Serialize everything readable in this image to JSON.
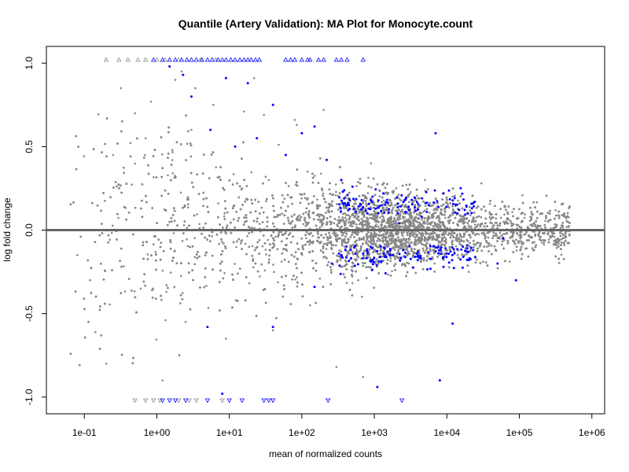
{
  "chart_data": {
    "type": "scatter",
    "title": "Quantile (Artery Validation): MA Plot for Monocyte.count",
    "xlabel": "mean of normalized counts",
    "ylabel": "log fold change",
    "x_scale": "log10",
    "xlim": [
      0.03,
      1500000
    ],
    "ylim": [
      -1.1,
      1.1
    ],
    "x_ticks": [
      {
        "value": 0.1,
        "label": "1e-01"
      },
      {
        "value": 1,
        "label": "1e+00"
      },
      {
        "value": 10,
        "label": "1e+01"
      },
      {
        "value": 100,
        "label": "1e+02"
      },
      {
        "value": 1000,
        "label": "1e+03"
      },
      {
        "value": 10000,
        "label": "1e+04"
      },
      {
        "value": 100000,
        "label": "1e+05"
      },
      {
        "value": 1000000,
        "label": "1e+06"
      }
    ],
    "y_ticks": [
      {
        "value": -1.0,
        "label": "-1.0"
      },
      {
        "value": -0.5,
        "label": "-0.5"
      },
      {
        "value": 0.0,
        "label": "0.0"
      },
      {
        "value": 0.5,
        "label": "0.5"
      },
      {
        "value": 1.0,
        "label": "1.0"
      }
    ],
    "reference_line": {
      "y": 0,
      "color": "#666666"
    },
    "grid": false,
    "colors": {
      "not_significant": "#888888",
      "significant": "#0000ff"
    },
    "series": [
      {
        "points": [
          [
            0.32,
            0.85
          ],
          [
            0.5,
            0.7
          ],
          [
            1.8,
            0.9
          ],
          [
            2.2,
            0.95
          ],
          [
            3.4,
            0.85
          ],
          [
            6.0,
            0.75
          ],
          [
            16,
            0.71
          ],
          [
            22,
            0.91
          ],
          [
            30,
            0.69
          ],
          [
            80,
            0.66
          ],
          [
            85,
            0.63
          ],
          [
            200,
            0.72
          ],
          [
            0.25,
            0.45
          ],
          [
            0.7,
            0.55
          ],
          [
            3.0,
            0.6
          ],
          [
            15,
            0.25
          ],
          [
            35,
            0.3
          ],
          [
            120,
            0.35
          ],
          [
            400,
            0.2
          ],
          [
            900,
            0.4
          ],
          [
            2000,
            0.25
          ],
          [
            5000,
            0.3
          ],
          [
            12000,
            0.2
          ],
          [
            30000,
            0.28
          ],
          [
            250000,
            0.05
          ],
          [
            0.08,
            -0.15
          ],
          [
            0.12,
            -0.3
          ],
          [
            0.6,
            -0.35
          ],
          [
            2.5,
            -0.55
          ],
          [
            9,
            -0.65
          ],
          [
            40,
            -0.6
          ],
          [
            130,
            -0.45
          ],
          [
            600,
            -0.3
          ],
          [
            3000,
            -0.2
          ],
          [
            20000,
            -0.25
          ],
          [
            160000,
            -0.12
          ],
          [
            0.2,
            -0.8
          ],
          [
            1.2,
            -0.9
          ],
          [
            300,
            -0.82
          ],
          [
            700,
            -0.88
          ]
        ],
        "values_note": ""
      },
      {
        "points": [
          [
            1.5,
            0.98
          ],
          [
            2.3,
            0.93
          ],
          [
            3.0,
            0.8
          ],
          [
            5.5,
            0.6
          ],
          [
            9,
            0.91
          ],
          [
            12,
            0.5
          ],
          [
            18,
            0.88
          ],
          [
            24,
            0.55
          ],
          [
            40,
            0.75
          ],
          [
            60,
            0.45
          ],
          [
            100,
            0.58
          ],
          [
            150,
            0.62
          ],
          [
            220,
            0.42
          ],
          [
            350,
            0.3
          ],
          [
            500,
            0.26
          ],
          [
            800,
            0.1
          ],
          [
            1500,
            0.18
          ],
          [
            2200,
            0.04
          ],
          [
            3000,
            0.12
          ],
          [
            4500,
            0.08
          ],
          [
            7000,
            0.58
          ],
          [
            9000,
            0.22
          ],
          [
            14000,
            0.1
          ],
          [
            60000,
            -0.05
          ],
          [
            90000,
            -0.3
          ],
          [
            50000,
            -0.2
          ],
          [
            20000,
            -0.18
          ],
          [
            9000,
            -0.22
          ],
          [
            4000,
            -0.13
          ],
          [
            2500,
            -0.12
          ],
          [
            1200,
            -0.16
          ],
          [
            700,
            -0.14
          ],
          [
            400,
            -0.12
          ],
          [
            260,
            -0.2
          ],
          [
            150,
            -0.34
          ],
          [
            40,
            -0.58
          ],
          [
            5,
            -0.58
          ],
          [
            8,
            -0.98
          ],
          [
            12000,
            -0.56
          ],
          [
            1100,
            -0.94
          ],
          [
            8000,
            -0.9
          ]
        ]
      }
    ],
    "clipped_top": {
      "y": 1.02,
      "not_significant_x": [
        0.2,
        0.3,
        0.4,
        0.55,
        0.7,
        1.0,
        1.3,
        2.0,
        4.0,
        6.5
      ],
      "significant_x": [
        0.9,
        1.2,
        1.5,
        1.8,
        2.2,
        2.6,
        3.0,
        3.5,
        4.2,
        5.0,
        5.8,
        7.0,
        8.0,
        9.0,
        10.5,
        12,
        14,
        16,
        18,
        20,
        23,
        26,
        60,
        70,
        80,
        100,
        120,
        130,
        170,
        200,
        300,
        350,
        420,
        700
      ]
    },
    "clipped_bottom": {
      "y": -1.02,
      "not_significant_x": [
        0.5,
        0.7,
        0.9,
        1.1,
        2.0,
        2.8,
        3.5,
        8.0
      ],
      "significant_x": [
        1.2,
        1.5,
        1.8,
        2.5,
        5.0,
        10,
        15,
        30,
        35,
        40,
        230,
        2400
      ]
    }
  }
}
